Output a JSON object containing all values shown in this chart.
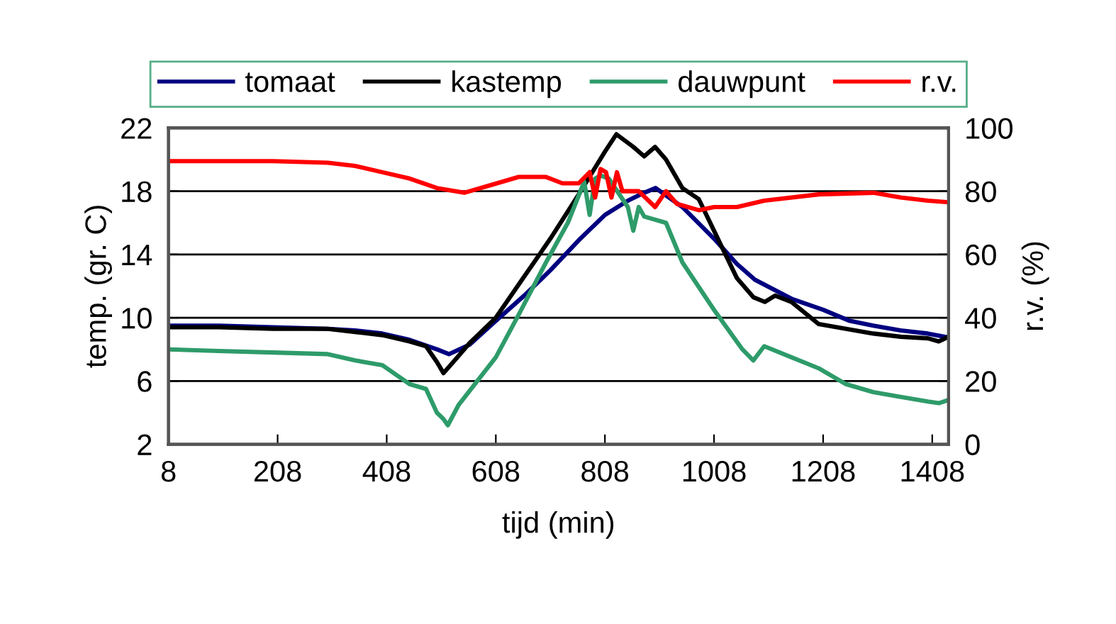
{
  "chart_data": {
    "type": "line",
    "xlabel": "tijd (min)",
    "ylabel": "temp. (gr. C)",
    "y2label": "r.v. (%)",
    "xlim": [
      8,
      1438
    ],
    "xticks": [
      8,
      208,
      408,
      608,
      808,
      1008,
      1208,
      1408
    ],
    "ylim": [
      2,
      22
    ],
    "yticks": [
      2,
      6,
      10,
      14,
      18,
      22
    ],
    "y2lim": [
      0,
      100
    ],
    "y2ticks": [
      0,
      20,
      40,
      60,
      80,
      100
    ],
    "grid": "y",
    "legend": "top",
    "marker": "none",
    "line_style": "solid",
    "series": [
      {
        "name": "tomaat",
        "color": "#000080",
        "x": [
          8,
          100,
          200,
          300,
          350,
          400,
          450,
          500,
          522,
          560,
          608,
          660,
          708,
          760,
          808,
          850,
          880,
          901,
          950,
          1008,
          1050,
          1083,
          1150,
          1208,
          1257,
          1300,
          1350,
          1400,
          1431
        ],
        "values": [
          9.5,
          9.5,
          9.4,
          9.3,
          9.2,
          9.0,
          8.6,
          8.0,
          7.7,
          8.3,
          9.8,
          11.4,
          13.0,
          14.9,
          16.5,
          17.4,
          17.9,
          18.2,
          17.0,
          15.0,
          13.4,
          12.4,
          11.2,
          10.5,
          9.8,
          9.5,
          9.2,
          9.0,
          8.8
        ]
      },
      {
        "name": "kastemp",
        "color": "#000000",
        "x": [
          8,
          100,
          200,
          300,
          350,
          400,
          450,
          480,
          500,
          512,
          530,
          560,
          608,
          660,
          708,
          760,
          808,
          829,
          860,
          880,
          900,
          920,
          950,
          980,
          1008,
          1050,
          1080,
          1101,
          1120,
          1150,
          1200,
          1250,
          1300,
          1350,
          1400,
          1420,
          1438
        ],
        "values": [
          9.4,
          9.4,
          9.3,
          9.3,
          9.1,
          8.9,
          8.5,
          8.2,
          7.2,
          6.5,
          7.2,
          8.4,
          10.0,
          12.6,
          15.0,
          17.8,
          20.5,
          21.6,
          20.8,
          20.2,
          20.8,
          20.0,
          18.2,
          17.5,
          15.5,
          12.5,
          11.3,
          11.0,
          11.4,
          11.0,
          9.6,
          9.3,
          9.0,
          8.8,
          8.7,
          8.5,
          8.8
        ]
      },
      {
        "name": "dauwpunt",
        "color": "#2e9b6a",
        "x": [
          8,
          100,
          200,
          300,
          350,
          400,
          450,
          480,
          500,
          512,
          520,
          540,
          608,
          650,
          700,
          740,
          770,
          780,
          790,
          800,
          815,
          850,
          860,
          870,
          880,
          920,
          950,
          1008,
          1060,
          1080,
          1100,
          1150,
          1200,
          1250,
          1300,
          1350,
          1400,
          1420,
          1438
        ],
        "values": [
          8.0,
          7.9,
          7.8,
          7.7,
          7.3,
          7.0,
          5.8,
          5.5,
          4.0,
          3.6,
          3.2,
          4.5,
          7.5,
          10.2,
          13.5,
          16.0,
          18.6,
          16.5,
          18.8,
          19.0,
          18.8,
          17.0,
          15.5,
          17.0,
          16.4,
          16.0,
          13.5,
          10.5,
          8.0,
          7.3,
          8.2,
          7.5,
          6.8,
          5.8,
          5.3,
          5.0,
          4.7,
          4.6,
          4.8
        ]
      },
      {
        "name": "r.v.",
        "color": "#ff0000",
        "axis": "y2",
        "x": [
          8,
          100,
          200,
          300,
          350,
          400,
          450,
          500,
          550,
          600,
          650,
          700,
          730,
          760,
          780,
          790,
          800,
          810,
          820,
          830,
          840,
          870,
          900,
          920,
          940,
          980,
          1008,
          1050,
          1100,
          1200,
          1300,
          1350,
          1400,
          1438
        ],
        "values": [
          89.5,
          89.5,
          89.5,
          89.0,
          88.0,
          86.0,
          84.0,
          81.0,
          79.5,
          82.0,
          84.5,
          84.5,
          82.5,
          82.5,
          86.0,
          78.0,
          87.0,
          86.0,
          78.0,
          86.0,
          80.0,
          80.0,
          75.0,
          80.0,
          76.0,
          74.0,
          75.0,
          75.0,
          77.0,
          79.0,
          79.5,
          78.0,
          77.0,
          76.5
        ]
      }
    ]
  }
}
